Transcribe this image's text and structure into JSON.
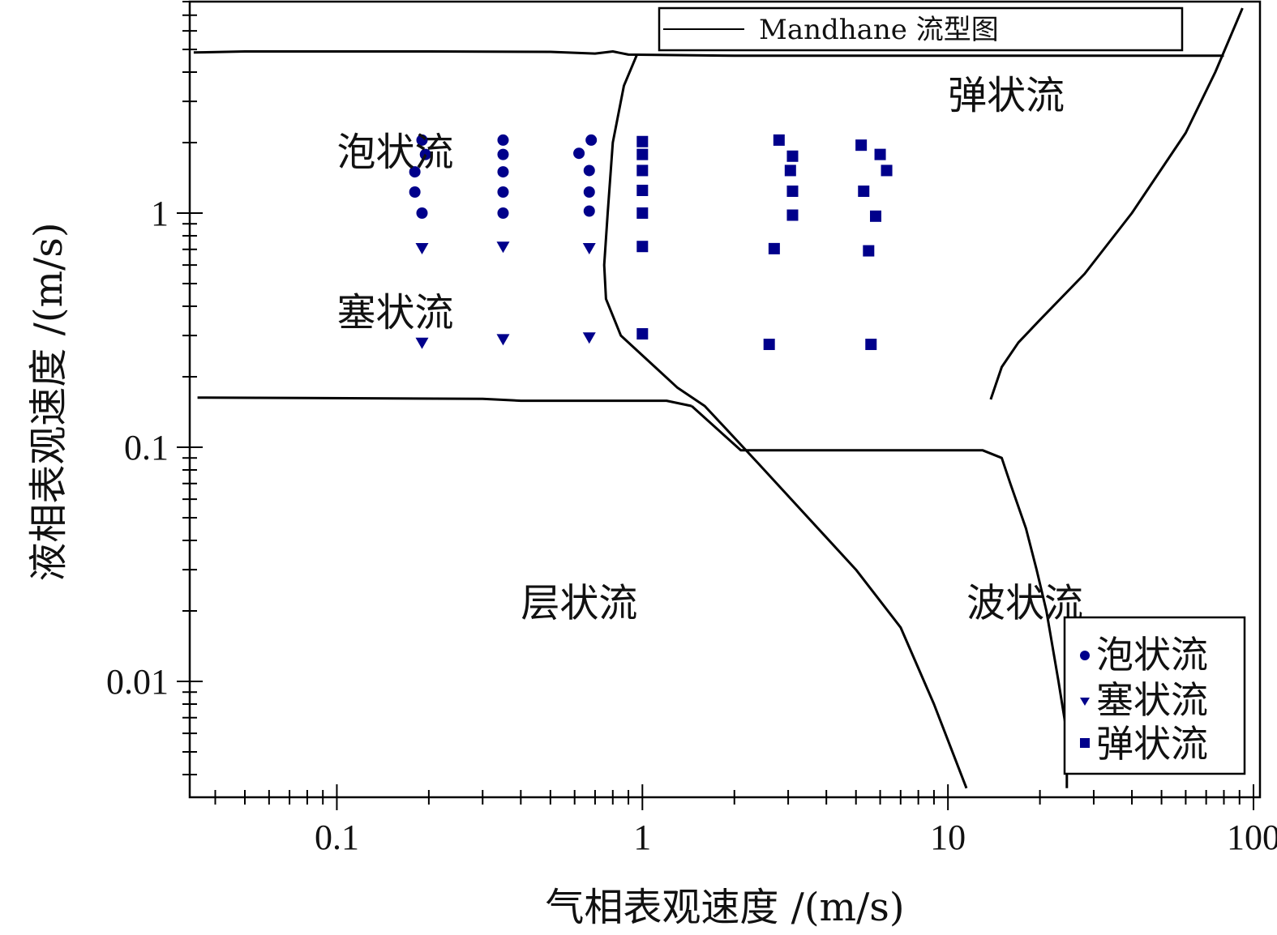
{
  "chart_data": {
    "type": "scatter",
    "xlabel": "气相表观速度  /(m/s)",
    "ylabel": "液相表观速度  /(m/s)",
    "x_scale": "log",
    "y_scale": "log",
    "xlim": [
      0.033,
      105
    ],
    "ylim": [
      0.0032,
      8.0
    ],
    "x_ticks": [
      {
        "value": 0.1,
        "label": "0.1"
      },
      {
        "value": 1,
        "label": "1"
      },
      {
        "value": 10,
        "label": "10"
      },
      {
        "value": 100,
        "label": "100"
      }
    ],
    "y_ticks": [
      {
        "value": 0.01,
        "label": "0.01"
      },
      {
        "value": 0.1,
        "label": "0.1"
      },
      {
        "value": 1,
        "label": "1"
      }
    ],
    "boundary_legend": "Mandhane 流型图",
    "boundary_color": "#000000",
    "boundaries": [
      {
        "points": [
          [
            0.034,
            4.85
          ],
          [
            0.05,
            4.9
          ],
          [
            0.2,
            4.9
          ],
          [
            0.5,
            4.88
          ],
          [
            0.7,
            4.8
          ],
          [
            0.8,
            4.9
          ],
          [
            0.9,
            4.75
          ],
          [
            2,
            4.7
          ],
          [
            10,
            4.7
          ],
          [
            80,
            4.7
          ]
        ]
      },
      {
        "points": [
          [
            0.96,
            4.75
          ],
          [
            0.87,
            3.5
          ],
          [
            0.8,
            2.0
          ],
          [
            0.77,
            1.0
          ],
          [
            0.75,
            0.6
          ],
          [
            0.76,
            0.43
          ],
          [
            0.85,
            0.3
          ],
          [
            1.1,
            0.22
          ],
          [
            1.3,
            0.18
          ],
          [
            1.6,
            0.15
          ],
          [
            2.4,
            0.085
          ],
          [
            5,
            0.03
          ],
          [
            7,
            0.017
          ],
          [
            9,
            0.008
          ],
          [
            11.5,
            0.0035
          ]
        ]
      },
      {
        "points": [
          [
            0.035,
            0.163
          ],
          [
            0.3,
            0.161
          ],
          [
            0.4,
            0.158
          ],
          [
            1.2,
            0.158
          ],
          [
            1.45,
            0.15
          ]
        ]
      },
      {
        "points": [
          [
            1.45,
            0.15
          ],
          [
            2.1,
            0.097
          ],
          [
            13,
            0.097
          ],
          [
            15,
            0.09
          ],
          [
            16,
            0.07
          ],
          [
            18,
            0.045
          ],
          [
            19.5,
            0.03
          ],
          [
            21,
            0.02
          ],
          [
            23,
            0.01
          ],
          [
            24.5,
            0.006
          ],
          [
            24.5,
            0.0035
          ]
        ]
      },
      {
        "points": [
          [
            13.8,
            0.16
          ],
          [
            15,
            0.22
          ],
          [
            17,
            0.28
          ],
          [
            20,
            0.35
          ],
          [
            28,
            0.55
          ],
          [
            40,
            1.0
          ],
          [
            60,
            2.2
          ],
          [
            75,
            4.0
          ],
          [
            92,
            7.5
          ]
        ]
      }
    ],
    "series": [
      {
        "name": "泡状流",
        "marker": "circle",
        "color": "#00008b",
        "points": [
          [
            0.19,
            2.05
          ],
          [
            0.195,
            1.78
          ],
          [
            0.18,
            1.5
          ],
          [
            0.18,
            1.23
          ],
          [
            0.19,
            1.0
          ],
          [
            0.35,
            2.05
          ],
          [
            0.35,
            1.78
          ],
          [
            0.35,
            1.5
          ],
          [
            0.35,
            1.23
          ],
          [
            0.35,
            1.0
          ],
          [
            0.68,
            2.05
          ],
          [
            0.62,
            1.8
          ],
          [
            0.67,
            1.52
          ],
          [
            0.67,
            1.23
          ],
          [
            0.67,
            1.02
          ]
        ]
      },
      {
        "name": "塞状流",
        "marker": "triangle-down",
        "color": "#00008b",
        "points": [
          [
            0.19,
            0.71
          ],
          [
            0.35,
            0.72
          ],
          [
            0.67,
            0.71
          ],
          [
            0.19,
            0.28
          ],
          [
            0.35,
            0.29
          ],
          [
            0.67,
            0.295
          ]
        ]
      },
      {
        "name": "弹状流",
        "marker": "square",
        "color": "#00008b",
        "points": [
          [
            1.0,
            2.02
          ],
          [
            1.0,
            1.78
          ],
          [
            1.0,
            1.52
          ],
          [
            1.0,
            1.25
          ],
          [
            1.0,
            1.0
          ],
          [
            1.0,
            0.72
          ],
          [
            1.0,
            0.305
          ],
          [
            2.8,
            2.05
          ],
          [
            3.1,
            1.75
          ],
          [
            3.05,
            1.52
          ],
          [
            3.1,
            1.24
          ],
          [
            3.1,
            0.98
          ],
          [
            2.7,
            0.705
          ],
          [
            2.6,
            0.275
          ],
          [
            5.2,
            1.95
          ],
          [
            6.0,
            1.78
          ],
          [
            6.3,
            1.52
          ],
          [
            5.3,
            1.24
          ],
          [
            5.8,
            0.97
          ],
          [
            5.5,
            0.69
          ],
          [
            5.6,
            0.275
          ]
        ]
      }
    ],
    "region_labels": [
      {
        "text": "泡状流",
        "x": 0.1,
        "y": 1.6
      },
      {
        "text": "弹状流",
        "x": 10,
        "y": 2.8
      },
      {
        "text": "塞状流",
        "x": 0.1,
        "y": 0.33
      },
      {
        "text": "层状流",
        "x": 0.4,
        "y": 0.019
      },
      {
        "text": "波状流",
        "x": 11.5,
        "y": 0.019
      }
    ]
  }
}
